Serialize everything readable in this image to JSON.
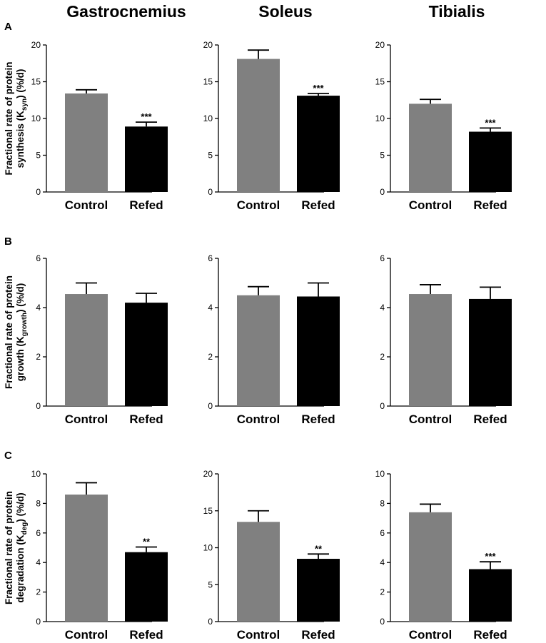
{
  "figure": {
    "columns": [
      "Gastrocnemius",
      "Soleus",
      "Tibialis"
    ],
    "colors": {
      "control": "#808080",
      "refed": "#000000",
      "axis": "#000000"
    }
  },
  "chart_data": [
    {
      "type": "bar",
      "row": "A",
      "panel_letter": "A",
      "muscle": "Gastrocnemius",
      "ylabel_parts": [
        "Fractional rate of protein",
        "synthesis (K",
        "syn",
        ") (%/d)"
      ],
      "categories": [
        "Control",
        "Refed"
      ],
      "values": [
        13.4,
        8.9
      ],
      "errors": [
        0.5,
        0.6
      ],
      "significance": [
        "",
        "***"
      ],
      "ylim": [
        0,
        20
      ],
      "yticks": [
        0,
        5,
        10,
        15,
        20
      ],
      "tick_labels": [
        "0",
        "5",
        "10",
        "15",
        "20"
      ]
    },
    {
      "type": "bar",
      "row": "A",
      "panel_letter": "",
      "muscle": "Soleus",
      "categories": [
        "Control",
        "Refed"
      ],
      "values": [
        18.1,
        13.1
      ],
      "errors": [
        1.2,
        0.3
      ],
      "significance": [
        "",
        "***"
      ],
      "ylim": [
        0,
        20
      ],
      "yticks": [
        0,
        5,
        10,
        15,
        20
      ],
      "tick_labels": [
        "0",
        "5",
        "10",
        "15",
        "20"
      ]
    },
    {
      "type": "bar",
      "row": "A",
      "panel_letter": "",
      "muscle": "Tibialis",
      "categories": [
        "Control",
        "Refed"
      ],
      "values": [
        12.0,
        8.2
      ],
      "errors": [
        0.6,
        0.5
      ],
      "significance": [
        "",
        "***"
      ],
      "ylim": [
        0,
        20
      ],
      "yticks": [
        0,
        5,
        10,
        15,
        20
      ],
      "tick_labels": [
        "0",
        "5",
        "10",
        "15",
        "20"
      ]
    },
    {
      "type": "bar",
      "row": "B",
      "panel_letter": "B",
      "muscle": "Gastrocnemius",
      "ylabel_parts": [
        "Fractional rate of protein",
        "growth (K",
        "growth",
        ") (%/d)"
      ],
      "categories": [
        "Control",
        "Refed"
      ],
      "values": [
        4.55,
        4.2
      ],
      "errors": [
        0.45,
        0.38
      ],
      "significance": [
        "",
        ""
      ],
      "ylim": [
        0,
        6
      ],
      "yticks": [
        0,
        2,
        4,
        6
      ],
      "tick_labels": [
        "0",
        "2",
        "4",
        "6"
      ]
    },
    {
      "type": "bar",
      "row": "B",
      "panel_letter": "",
      "muscle": "Soleus",
      "categories": [
        "Control",
        "Refed"
      ],
      "values": [
        4.5,
        4.45
      ],
      "errors": [
        0.35,
        0.55
      ],
      "significance": [
        "",
        ""
      ],
      "ylim": [
        0,
        6
      ],
      "yticks": [
        0,
        2,
        4,
        6
      ],
      "tick_labels": [
        "0",
        "2",
        "4",
        "6"
      ]
    },
    {
      "type": "bar",
      "row": "B",
      "panel_letter": "",
      "muscle": "Tibialis",
      "categories": [
        "Control",
        "Refed"
      ],
      "values": [
        4.55,
        4.35
      ],
      "errors": [
        0.38,
        0.48
      ],
      "significance": [
        "",
        ""
      ],
      "ylim": [
        0,
        6
      ],
      "yticks": [
        0,
        2,
        4,
        6
      ],
      "tick_labels": [
        "0",
        "2",
        "4",
        "6"
      ]
    },
    {
      "type": "bar",
      "row": "C",
      "panel_letter": "C",
      "muscle": "Gastrocnemius",
      "ylabel_parts": [
        "Fractional rate of protein",
        "degradation (K",
        "deg",
        ") (%/d)"
      ],
      "categories": [
        "Control",
        "Refed"
      ],
      "values": [
        8.6,
        4.7
      ],
      "errors": [
        0.8,
        0.35
      ],
      "significance": [
        "",
        "**"
      ],
      "ylim": [
        0,
        10
      ],
      "yticks": [
        0,
        2,
        4,
        6,
        8,
        10
      ],
      "tick_labels": [
        "0",
        "2",
        "4",
        "6",
        "8",
        "10"
      ]
    },
    {
      "type": "bar",
      "row": "C",
      "panel_letter": "",
      "muscle": "Soleus",
      "categories": [
        "Control",
        "Refed"
      ],
      "values": [
        13.5,
        8.5
      ],
      "errors": [
        1.5,
        0.65
      ],
      "significance": [
        "",
        "**"
      ],
      "ylim": [
        0,
        20
      ],
      "yticks": [
        0,
        5,
        10,
        15,
        20
      ],
      "tick_labels": [
        "0",
        "5",
        "10",
        "15",
        "20"
      ]
    },
    {
      "type": "bar",
      "row": "C",
      "panel_letter": "",
      "muscle": "Tibialis",
      "categories": [
        "Control",
        "Refed"
      ],
      "values": [
        7.4,
        3.55
      ],
      "errors": [
        0.55,
        0.5
      ],
      "significance": [
        "",
        "***"
      ],
      "ylim": [
        0,
        10
      ],
      "yticks": [
        0,
        2,
        4,
        6,
        8,
        10
      ],
      "tick_labels": [
        "0",
        "2",
        "4",
        "6",
        "8",
        "10"
      ]
    }
  ]
}
